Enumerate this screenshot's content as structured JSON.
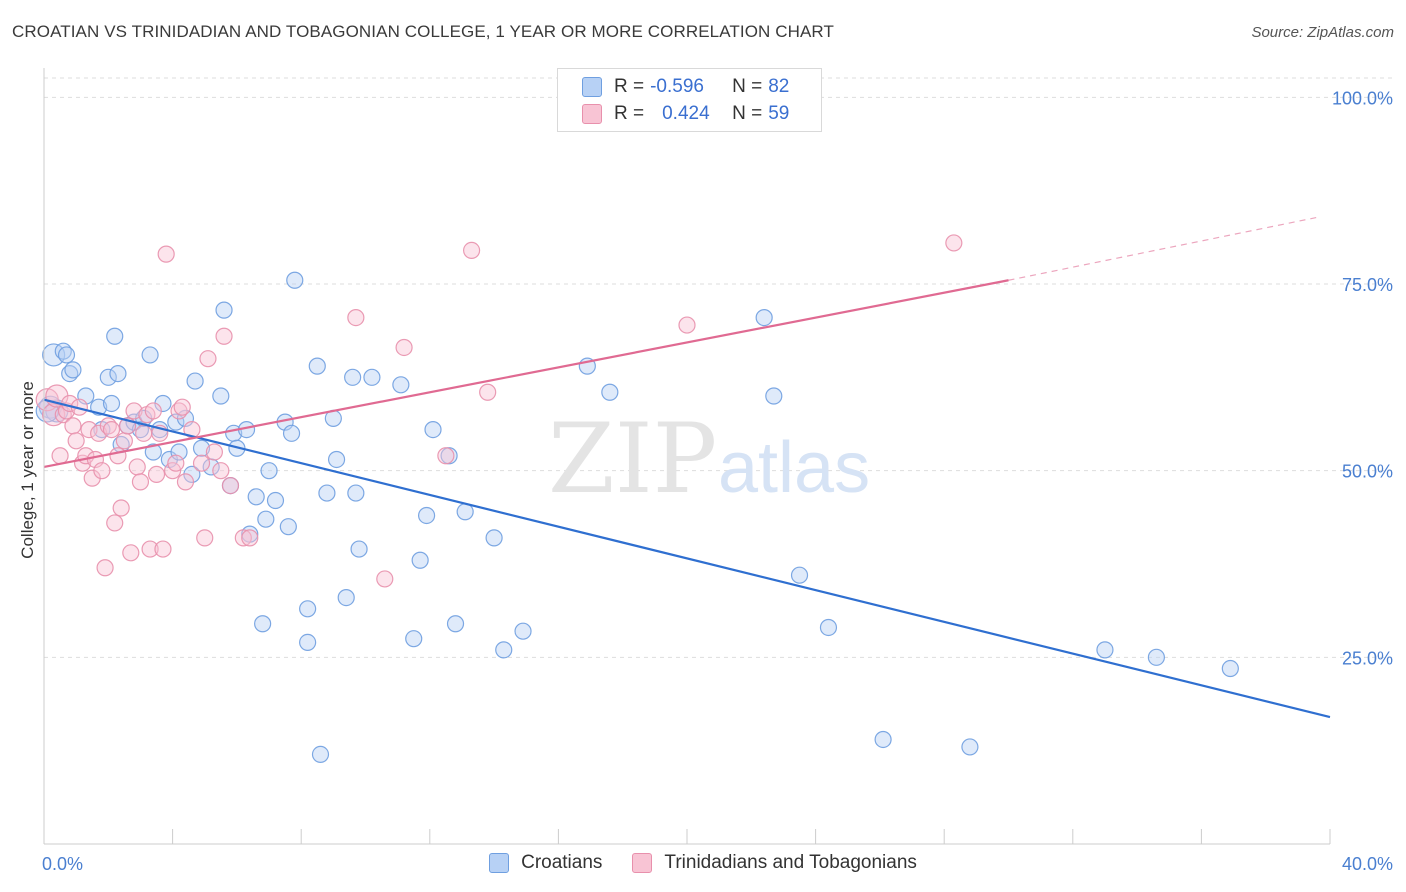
{
  "title": "CROATIAN VS TRINIDADIAN AND TOBAGONIAN COLLEGE, 1 YEAR OR MORE CORRELATION CHART",
  "source": "Source: ZipAtlas.com",
  "watermark": {
    "zip": "ZIP",
    "atlas": "atlas"
  },
  "legend": {
    "r_label": "R =",
    "n_label": "N =",
    "series": [
      {
        "name": "Croatians",
        "r": "-0.596",
        "n": "82",
        "fill": "#b7d1f5",
        "stroke": "#6f9fe0"
      },
      {
        "name": "Trinidadians and Tobagonians",
        "r": "0.424",
        "n": "59",
        "fill": "#f8c4d4",
        "stroke": "#e890ac"
      }
    ]
  },
  "chart_data": {
    "type": "scatter",
    "title": "CROATIAN VS TRINIDADIAN AND TOBAGONIAN COLLEGE, 1 YEAR OR MORE CORRELATION CHART",
    "xlabel": "",
    "ylabel": "College, 1 year or more",
    "xlim": [
      0,
      40
    ],
    "ylim": [
      0,
      105
    ],
    "x_tick_labels": [
      "0.0%",
      "40.0%"
    ],
    "y_ticks": [
      25,
      50,
      75,
      100
    ],
    "y_tick_labels": [
      "25.0%",
      "50.0%",
      "75.0%",
      "100.0%"
    ],
    "series": [
      {
        "name": "Croatians",
        "color": "#6f9fe0",
        "fill": "#b7d1f5",
        "trend": {
          "x": [
            0,
            40
          ],
          "y": [
            59.5,
            17.0
          ],
          "color": "#2f6fd0"
        },
        "points": [
          [
            0.2,
            58.5
          ],
          [
            0.3,
            65.5
          ],
          [
            0.4,
            58.0
          ],
          [
            0.6,
            66.0
          ],
          [
            0.7,
            65.5
          ],
          [
            0.8,
            63.0
          ],
          [
            0.9,
            63.5
          ],
          [
            1.3,
            60.0
          ],
          [
            1.7,
            58.5
          ],
          [
            1.8,
            55.5
          ],
          [
            2.0,
            62.5
          ],
          [
            2.1,
            59.0
          ],
          [
            2.2,
            68.0
          ],
          [
            2.3,
            63.0
          ],
          [
            2.4,
            53.5
          ],
          [
            2.6,
            56.0
          ],
          [
            2.8,
            56.5
          ],
          [
            3.0,
            55.5
          ],
          [
            3.1,
            57.0
          ],
          [
            3.3,
            65.5
          ],
          [
            3.4,
            52.5
          ],
          [
            3.6,
            55.5
          ],
          [
            3.7,
            59.0
          ],
          [
            3.9,
            51.5
          ],
          [
            4.1,
            56.5
          ],
          [
            4.2,
            52.5
          ],
          [
            4.4,
            57.0
          ],
          [
            4.6,
            49.5
          ],
          [
            4.7,
            62.0
          ],
          [
            4.9,
            53.0
          ],
          [
            5.2,
            50.5
          ],
          [
            5.5,
            60.0
          ],
          [
            5.6,
            71.5
          ],
          [
            5.8,
            48.0
          ],
          [
            5.9,
            55.0
          ],
          [
            6.0,
            53.0
          ],
          [
            6.3,
            55.5
          ],
          [
            6.4,
            41.5
          ],
          [
            6.6,
            46.5
          ],
          [
            6.9,
            43.5
          ],
          [
            6.8,
            29.5
          ],
          [
            7.0,
            50.0
          ],
          [
            7.2,
            46.0
          ],
          [
            7.5,
            56.5
          ],
          [
            7.6,
            42.5
          ],
          [
            7.7,
            55.0
          ],
          [
            7.8,
            75.5
          ],
          [
            8.2,
            31.5
          ],
          [
            8.2,
            27.0
          ],
          [
            8.5,
            64.0
          ],
          [
            8.6,
            12.0
          ],
          [
            8.8,
            47.0
          ],
          [
            9.0,
            57.0
          ],
          [
            9.1,
            51.5
          ],
          [
            9.4,
            33.0
          ],
          [
            9.6,
            62.5
          ],
          [
            9.7,
            47.0
          ],
          [
            9.8,
            39.5
          ],
          [
            10.2,
            62.5
          ],
          [
            11.1,
            61.5
          ],
          [
            11.5,
            27.5
          ],
          [
            11.7,
            38.0
          ],
          [
            11.9,
            44.0
          ],
          [
            12.1,
            55.5
          ],
          [
            12.6,
            52.0
          ],
          [
            12.8,
            29.5
          ],
          [
            13.1,
            44.5
          ],
          [
            14.0,
            41.0
          ],
          [
            14.3,
            26.0
          ],
          [
            14.9,
            28.5
          ],
          [
            16.9,
            64.0
          ],
          [
            17.6,
            60.5
          ],
          [
            22.4,
            70.5
          ],
          [
            22.7,
            60.0
          ],
          [
            23.5,
            36.0
          ],
          [
            24.4,
            29.0
          ],
          [
            26.1,
            14.0
          ],
          [
            28.8,
            13.0
          ],
          [
            33.0,
            26.0
          ],
          [
            34.6,
            25.0
          ],
          [
            36.9,
            23.5
          ],
          [
            0.1,
            58.0
          ]
        ]
      },
      {
        "name": "Trinidadians and Tobagonians",
        "color": "#e890ac",
        "fill": "#f8c4d4",
        "trend": {
          "x": [
            0,
            30
          ],
          "y": [
            50.5,
            75.5
          ],
          "color": "#e06a92"
        },
        "trend_dashed": {
          "x": [
            30,
            40
          ],
          "y": [
            75.5,
            84.0
          ]
        },
        "points": [
          [
            0.1,
            59.5
          ],
          [
            0.3,
            57.5
          ],
          [
            0.4,
            60.0
          ],
          [
            0.5,
            52.0
          ],
          [
            0.6,
            57.5
          ],
          [
            0.7,
            58.0
          ],
          [
            0.8,
            59.0
          ],
          [
            0.9,
            56.0
          ],
          [
            1.0,
            54.0
          ],
          [
            1.1,
            58.5
          ],
          [
            1.2,
            51.0
          ],
          [
            1.3,
            52.0
          ],
          [
            1.4,
            55.5
          ],
          [
            1.5,
            49.0
          ],
          [
            1.6,
            51.5
          ],
          [
            1.7,
            55.0
          ],
          [
            1.8,
            50.0
          ],
          [
            1.9,
            37.0
          ],
          [
            2.0,
            56.0
          ],
          [
            2.1,
            55.5
          ],
          [
            2.2,
            43.0
          ],
          [
            2.3,
            52.0
          ],
          [
            2.4,
            45.0
          ],
          [
            2.5,
            54.0
          ],
          [
            2.6,
            56.0
          ],
          [
            2.7,
            39.0
          ],
          [
            2.8,
            58.0
          ],
          [
            2.9,
            50.5
          ],
          [
            3.0,
            48.5
          ],
          [
            3.1,
            55.0
          ],
          [
            3.2,
            57.5
          ],
          [
            3.3,
            39.5
          ],
          [
            3.4,
            58.0
          ],
          [
            3.5,
            49.5
          ],
          [
            3.6,
            55.0
          ],
          [
            3.7,
            39.5
          ],
          [
            3.8,
            79.0
          ],
          [
            4.0,
            50.0
          ],
          [
            4.1,
            51.0
          ],
          [
            4.2,
            58.0
          ],
          [
            4.3,
            58.5
          ],
          [
            4.4,
            48.5
          ],
          [
            4.6,
            55.5
          ],
          [
            4.9,
            51.0
          ],
          [
            5.0,
            41.0
          ],
          [
            5.1,
            65.0
          ],
          [
            5.3,
            52.5
          ],
          [
            5.5,
            50.0
          ],
          [
            5.6,
            68.0
          ],
          [
            5.8,
            48.0
          ],
          [
            6.2,
            41.0
          ],
          [
            6.4,
            41.0
          ],
          [
            9.7,
            70.5
          ],
          [
            10.6,
            35.5
          ],
          [
            11.2,
            66.5
          ],
          [
            12.5,
            52.0
          ],
          [
            13.3,
            79.5
          ],
          [
            13.8,
            60.5
          ],
          [
            20.0,
            69.5
          ],
          [
            28.3,
            80.5
          ]
        ]
      }
    ]
  }
}
